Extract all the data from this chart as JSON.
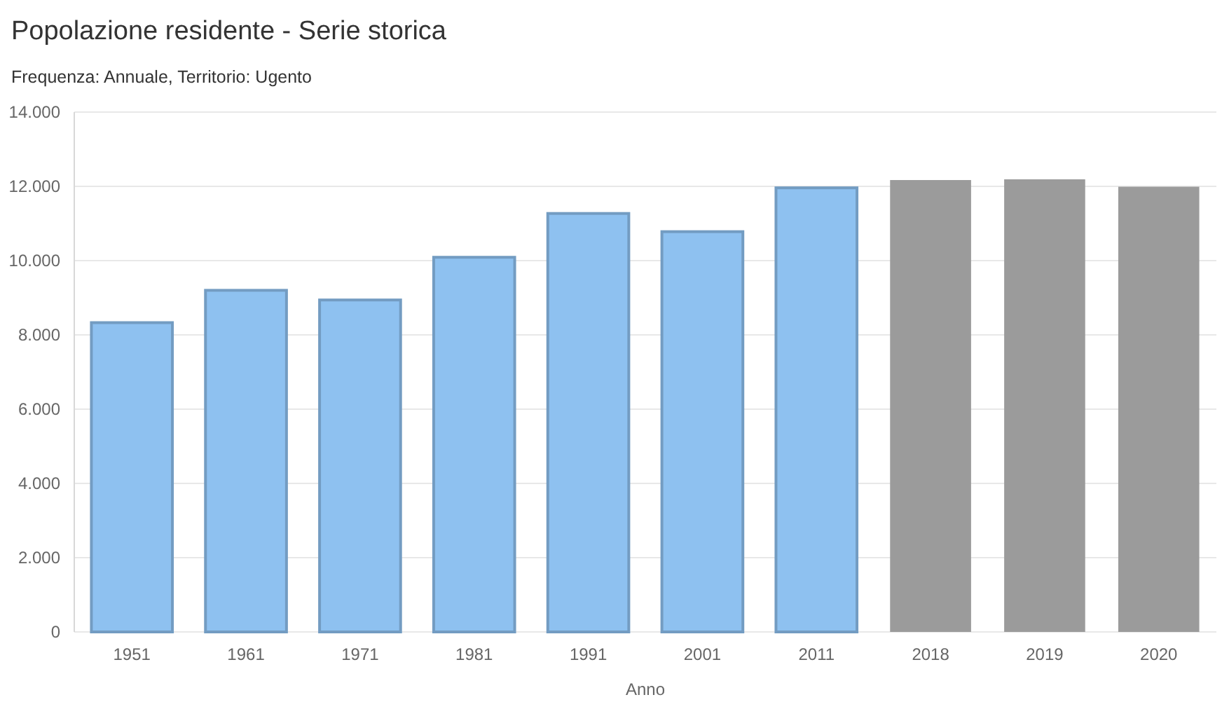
{
  "chart_data": {
    "type": "bar",
    "title": "Popolazione residente - Serie storica",
    "subtitle": "Frequenza: Annuale,  Territorio: Ugento",
    "xlabel": "Anno",
    "categories": [
      "1951",
      "1961",
      "1971",
      "1981",
      "1991",
      "2001",
      "2011",
      "2018",
      "2019",
      "2020"
    ],
    "values": [
      8330,
      9200,
      8940,
      10090,
      11270,
      10780,
      11960,
      12170,
      12190,
      11990
    ],
    "colors": [
      "#8ec1f0",
      "#8ec1f0",
      "#8ec1f0",
      "#8ec1f0",
      "#8ec1f0",
      "#8ec1f0",
      "#8ec1f0",
      "#9b9b9b",
      "#9b9b9b",
      "#9b9b9b"
    ],
    "ylim": [
      0,
      14000
    ],
    "yticks": [
      0,
      {
        "value": 2000,
        "label": "2.000"
      },
      {
        "value": 4000,
        "label": "4.000"
      },
      {
        "value": 6000,
        "label": "6.000"
      },
      {
        "value": 8000,
        "label": "8.000"
      },
      {
        "value": 10000,
        "label": "10.000"
      },
      {
        "value": 12000,
        "label": "12.000"
      },
      {
        "value": 14000,
        "label": "14.000"
      }
    ],
    "grid": "y"
  }
}
